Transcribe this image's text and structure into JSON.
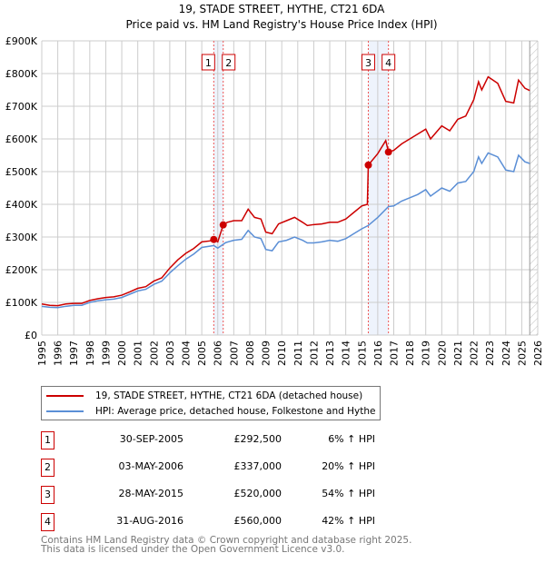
{
  "chart_data": {
    "type": "line",
    "title": "19, STADE STREET, HYTHE, CT21 6DA",
    "subtitle": "Price paid vs. HM Land Registry's House Price Index (HPI)",
    "ylim": [
      0,
      900000
    ],
    "xlim": [
      1995,
      2026
    ],
    "yticks": [
      "£0",
      "£100K",
      "£200K",
      "£300K",
      "£400K",
      "£500K",
      "£600K",
      "£700K",
      "£800K",
      "£900K"
    ],
    "xticks": [
      "1995",
      "1996",
      "1997",
      "1998",
      "1999",
      "2000",
      "2001",
      "2002",
      "2003",
      "2004",
      "2005",
      "2006",
      "2007",
      "2008",
      "2009",
      "2010",
      "2011",
      "2012",
      "2013",
      "2014",
      "2015",
      "2016",
      "2017",
      "2018",
      "2019",
      "2020",
      "2021",
      "2022",
      "2023",
      "2024",
      "2025",
      "2026"
    ],
    "grid": true,
    "series": [
      {
        "name": "19, STADE STREET, HYTHE, CT21 6DA (detached house)",
        "color": "#cc0000",
        "x": [
          1995,
          1995.5,
          1996,
          1996.5,
          1997,
          1997.5,
          1998,
          1998.5,
          1999,
          1999.5,
          2000,
          2000.5,
          2001,
          2001.5,
          2002,
          2002.5,
          2003,
          2003.5,
          2004,
          2004.5,
          2005,
          2005.5,
          2005.75,
          2006,
          2006.34,
          2006.6,
          2007,
          2007.5,
          2007.9,
          2008.3,
          2008.7,
          2009,
          2009.4,
          2009.8,
          2010.3,
          2010.8,
          2011.3,
          2011.6,
          2012,
          2012.5,
          2013,
          2013.5,
          2014,
          2014.5,
          2015,
          2015.35,
          2015.41,
          2016,
          2016.5,
          2016.67,
          2017,
          2017.5,
          2018,
          2018.5,
          2019,
          2019.3,
          2020,
          2020.5,
          2021,
          2021.5,
          2022,
          2022.3,
          2022.5,
          2022.9,
          2023.5,
          2024,
          2024.5,
          2024.8,
          2025.2,
          2025.5
        ],
        "y": [
          95000,
          91000,
          90000,
          95000,
          97000,
          97000,
          106000,
          111000,
          115000,
          117000,
          122000,
          132000,
          143000,
          148000,
          165000,
          175000,
          205000,
          230000,
          250000,
          265000,
          285000,
          288000,
          292500,
          285000,
          337000,
          345000,
          350000,
          350000,
          385000,
          360000,
          355000,
          315000,
          310000,
          340000,
          350000,
          360000,
          345000,
          335000,
          338000,
          340000,
          345000,
          345000,
          355000,
          375000,
          395000,
          400000,
          520000,
          555000,
          595000,
          560000,
          565000,
          585000,
          600000,
          615000,
          630000,
          600000,
          640000,
          625000,
          660000,
          670000,
          720000,
          775000,
          750000,
          790000,
          770000,
          715000,
          710000,
          780000,
          755000,
          748000
        ]
      },
      {
        "name": "HPI: Average price, detached house, Folkestone and Hythe",
        "color": "#5b8fd6",
        "x": [
          1995,
          1995.5,
          1996,
          1996.5,
          1997,
          1997.5,
          1998,
          1998.5,
          1999,
          1999.5,
          2000,
          2000.5,
          2001,
          2001.5,
          2002,
          2002.5,
          2003,
          2003.5,
          2004,
          2004.5,
          2005,
          2005.5,
          2005.75,
          2006,
          2006.5,
          2007,
          2007.5,
          2007.9,
          2008.3,
          2008.7,
          2009,
          2009.4,
          2009.8,
          2010.3,
          2010.8,
          2011.3,
          2011.6,
          2012,
          2012.5,
          2013,
          2013.5,
          2014,
          2014.5,
          2015,
          2015.4,
          2016,
          2016.67,
          2017,
          2017.5,
          2018,
          2018.5,
          2019,
          2019.3,
          2020,
          2020.5,
          2021,
          2021.5,
          2022,
          2022.3,
          2022.5,
          2022.9,
          2023.5,
          2024,
          2024.5,
          2024.8,
          2025.2,
          2025.5
        ],
        "y": [
          88000,
          85000,
          84000,
          88000,
          91000,
          91000,
          100000,
          105000,
          108000,
          110000,
          115000,
          125000,
          135000,
          140000,
          155000,
          165000,
          190000,
          212000,
          232000,
          248000,
          268000,
          272000,
          274000,
          266000,
          283000,
          290000,
          293000,
          320000,
          300000,
          295000,
          262000,
          258000,
          285000,
          290000,
          300000,
          290000,
          282000,
          282000,
          285000,
          290000,
          287000,
          295000,
          310000,
          325000,
          335000,
          360000,
          393000,
          395000,
          410000,
          420000,
          430000,
          445000,
          425000,
          450000,
          440000,
          465000,
          470000,
          500000,
          545000,
          525000,
          557000,
          545000,
          505000,
          500000,
          550000,
          530000,
          525000
        ]
      }
    ],
    "sales": [
      {
        "label": "1",
        "x": 2005.75,
        "y": 292500,
        "date": "30-SEP-2005",
        "price": "£292,500",
        "hpi": "6% ↑ HPI"
      },
      {
        "label": "2",
        "x": 2006.34,
        "y": 337000,
        "date": "03-MAY-2006",
        "price": "£337,000",
        "hpi": "20% ↑ HPI"
      },
      {
        "label": "3",
        "x": 2015.41,
        "y": 520000,
        "date": "28-MAY-2015",
        "price": "£520,000",
        "hpi": "54% ↑ HPI"
      },
      {
        "label": "4",
        "x": 2016.67,
        "y": 560000,
        "date": "31-AUG-2016",
        "price": "£560,000",
        "hpi": "42% ↑ HPI"
      }
    ],
    "forecast_from": 2025.5
  },
  "footer": [
    "Contains HM Land Registry data © Crown copyright and database right 2025.",
    "This data is licensed under the Open Government Licence v3.0."
  ]
}
